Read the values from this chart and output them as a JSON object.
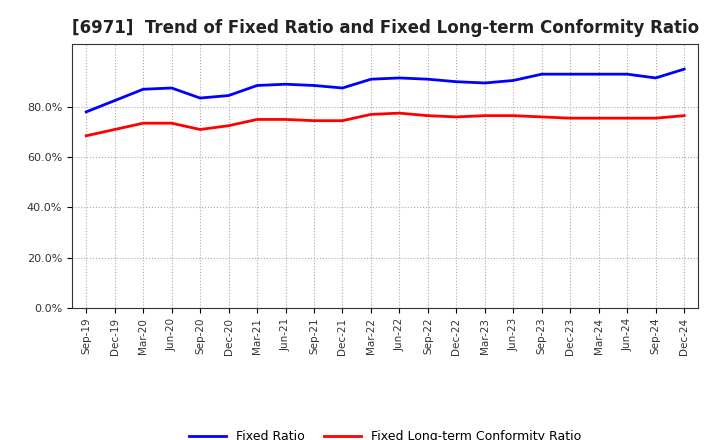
{
  "title": "[6971]  Trend of Fixed Ratio and Fixed Long-term Conformity Ratio",
  "x_labels": [
    "Sep-19",
    "Dec-19",
    "Mar-20",
    "Jun-20",
    "Sep-20",
    "Dec-20",
    "Mar-21",
    "Jun-21",
    "Sep-21",
    "Dec-21",
    "Mar-22",
    "Jun-22",
    "Sep-22",
    "Dec-22",
    "Mar-23",
    "Jun-23",
    "Sep-23",
    "Dec-23",
    "Mar-24",
    "Jun-24",
    "Sep-24",
    "Dec-24"
  ],
  "fixed_ratio": [
    78.0,
    82.5,
    87.0,
    87.5,
    83.5,
    84.5,
    88.5,
    89.0,
    88.5,
    87.5,
    91.0,
    91.5,
    91.0,
    90.0,
    89.5,
    90.5,
    93.0,
    93.0,
    93.0,
    93.0,
    91.5,
    95.0
  ],
  "fixed_lt_ratio": [
    68.5,
    71.0,
    73.5,
    73.5,
    71.0,
    72.5,
    75.0,
    75.0,
    74.5,
    74.5,
    77.0,
    77.5,
    76.5,
    76.0,
    76.5,
    76.5,
    76.0,
    75.5,
    75.5,
    75.5,
    75.5,
    76.5
  ],
  "fixed_ratio_color": "#0000FF",
  "fixed_lt_ratio_color": "#FF0000",
  "ylim": [
    0,
    105
  ],
  "yticks": [
    0,
    20,
    40,
    60,
    80
  ],
  "ytick_labels": [
    "0.0%",
    "20.0%",
    "40.0%",
    "60.0%",
    "80.0%"
  ],
  "background_color": "#FFFFFF",
  "grid_color": "#AAAAAA",
  "legend_fixed_ratio": "Fixed Ratio",
  "legend_fixed_lt_ratio": "Fixed Long-term Conformity Ratio",
  "title_fontsize": 12,
  "line_width": 2.0
}
